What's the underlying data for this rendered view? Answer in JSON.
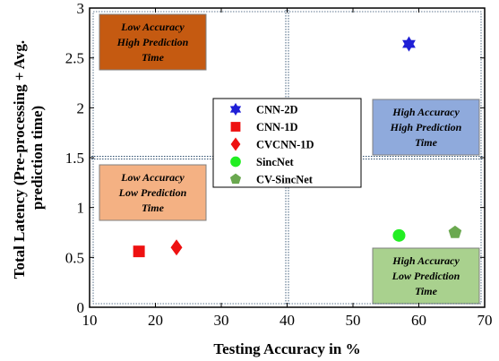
{
  "chart_data": {
    "type": "scatter",
    "xlabel": "Testing Accuracy in %",
    "ylabel_lines": [
      "Total Latency (Pre-processing + Avg.",
      "prediction  time)"
    ],
    "xlim": [
      10,
      70
    ],
    "ylim": [
      0,
      3
    ],
    "xticks": [
      "10",
      "20",
      "30",
      "40",
      "50",
      "60",
      "70"
    ],
    "yticks": [
      "0",
      "0.5",
      "1",
      "1.5",
      "2",
      "2.5",
      "3"
    ],
    "reference_lines": {
      "x": 40,
      "y": 1.5,
      "style": "double-dotted"
    },
    "legend_position": "center",
    "series": [
      {
        "name": "CNN-2D",
        "marker": "star",
        "color": "#1f1fd6",
        "x": 58.5,
        "y": 2.64
      },
      {
        "name": "CNN-1D",
        "marker": "square",
        "color": "#ee1111",
        "x": 17.5,
        "y": 0.56
      },
      {
        "name": "CVCNN-1D",
        "marker": "diamond",
        "color": "#ee1111",
        "x": 23.2,
        "y": 0.6
      },
      {
        "name": "SincNet",
        "marker": "circle",
        "color": "#22ee22",
        "x": 57,
        "y": 0.72
      },
      {
        "name": "CV-SincNet",
        "marker": "pentagon",
        "color": "#6aa84f",
        "x": 65.5,
        "y": 0.75
      }
    ],
    "regions": [
      {
        "name": "top-left",
        "lines": [
          "Low Accuracy",
          "High Prediction",
          "Time"
        ],
        "color": "#c55a11",
        "text_color": "#000000"
      },
      {
        "name": "top-right",
        "lines": [
          "High Accuracy",
          "High Prediction",
          "Time"
        ],
        "color": "#8faadc",
        "text_color": "#000000"
      },
      {
        "name": "bottom-left",
        "lines": [
          "Low Accuracy",
          "Low Prediction",
          "Time"
        ],
        "color": "#f4b183",
        "text_color": "#000000"
      },
      {
        "name": "bottom-right",
        "lines": [
          "High Accuracy",
          "Low Prediction",
          "Time"
        ],
        "color": "#a9d18e",
        "text_color": "#000000"
      }
    ]
  }
}
